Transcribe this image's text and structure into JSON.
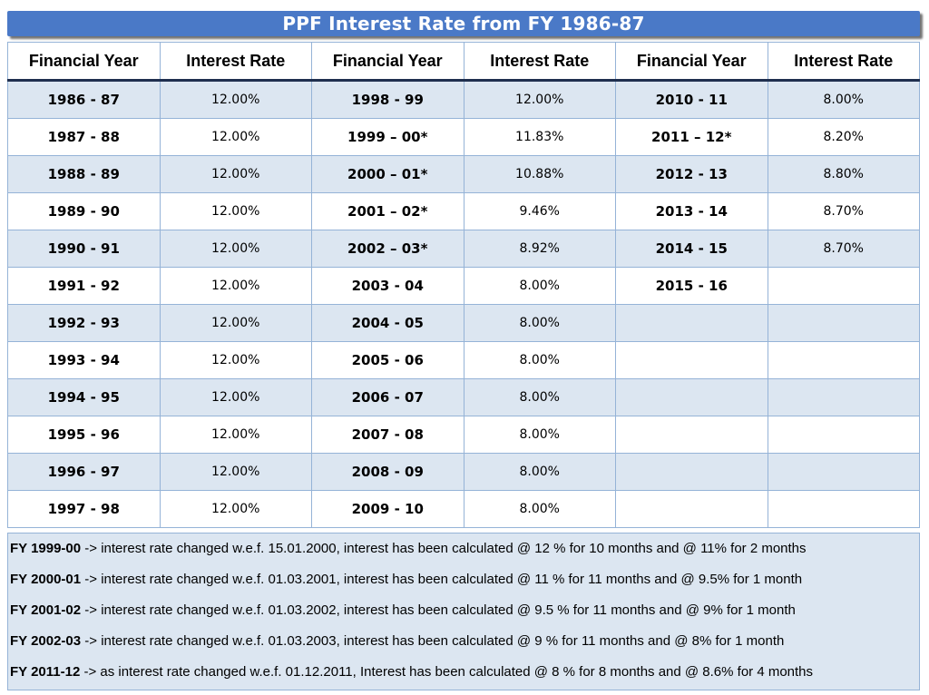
{
  "title": "PPF Interest Rate from FY 1986-87",
  "headers": [
    "Financial Year",
    "Interest Rate",
    "Financial Year",
    "Interest Rate",
    "Financial Year",
    "Interest Rate"
  ],
  "rows": [
    [
      "1986 - 87",
      "12.00%",
      "1998 - 99",
      "12.00%",
      "2010 - 11",
      "8.00%"
    ],
    [
      "1987 - 88",
      "12.00%",
      "1999 – 00*",
      "11.83%",
      "2011 – 12*",
      "8.20%"
    ],
    [
      "1988 - 89",
      "12.00%",
      "2000 – 01*",
      "10.88%",
      "2012 - 13",
      "8.80%"
    ],
    [
      "1989 - 90",
      "12.00%",
      "2001 – 02*",
      "9.46%",
      "2013 - 14",
      "8.70%"
    ],
    [
      "1990 - 91",
      "12.00%",
      "2002 – 03*",
      "8.92%",
      "2014 - 15",
      "8.70%"
    ],
    [
      "1991 - 92",
      "12.00%",
      "2003 - 04",
      "8.00%",
      "2015 - 16",
      ""
    ],
    [
      "1992 - 93",
      "12.00%",
      "2004 - 05",
      "8.00%",
      "",
      ""
    ],
    [
      "1993 - 94",
      "12.00%",
      "2005 - 06",
      "8.00%",
      "",
      ""
    ],
    [
      "1994 - 95",
      "12.00%",
      "2006 - 07",
      "8.00%",
      "",
      ""
    ],
    [
      "1995 - 96",
      "12.00%",
      "2007 - 08",
      "8.00%",
      "",
      ""
    ],
    [
      "1996 - 97",
      "12.00%",
      "2008 - 09",
      "8.00%",
      "",
      ""
    ],
    [
      "1997 - 98",
      "12.00%",
      "2009 - 10",
      "8.00%",
      "",
      ""
    ]
  ],
  "notes": [
    {
      "label": "FY 1999-00",
      "text": " -> interest rate changed w.e.f. 15.01.2000, interest has been calculated @ 12 % for 10 months and @ 11% for 2 months"
    },
    {
      "label": "FY 2000-01",
      "text": " -> interest rate changed w.e.f. 01.03.2001, interest has been calculated @ 11 % for 11 months and @ 9.5% for 1 month"
    },
    {
      "label": "FY 2001-02",
      "text": " -> interest rate changed w.e.f. 01.03.2002, interest has been calculated @ 9.5 % for 11 months and @ 9% for 1 month"
    },
    {
      "label": "FY 2002-03",
      "text": " -> interest rate changed w.e.f. 01.03.2003, interest has been calculated @ 9 % for 11 months and @ 8% for 1 month"
    },
    {
      "label": "FY 2011-12",
      "text": " -> as interest rate changed w.e.f. 01.12.2011, Interest has been calculated @ 8 % for 8 months and @ 8.6% for 4 months"
    }
  ],
  "colors": {
    "title_bg": "#4a79c7",
    "band": "#dce6f1",
    "border": "#95b3d7"
  }
}
